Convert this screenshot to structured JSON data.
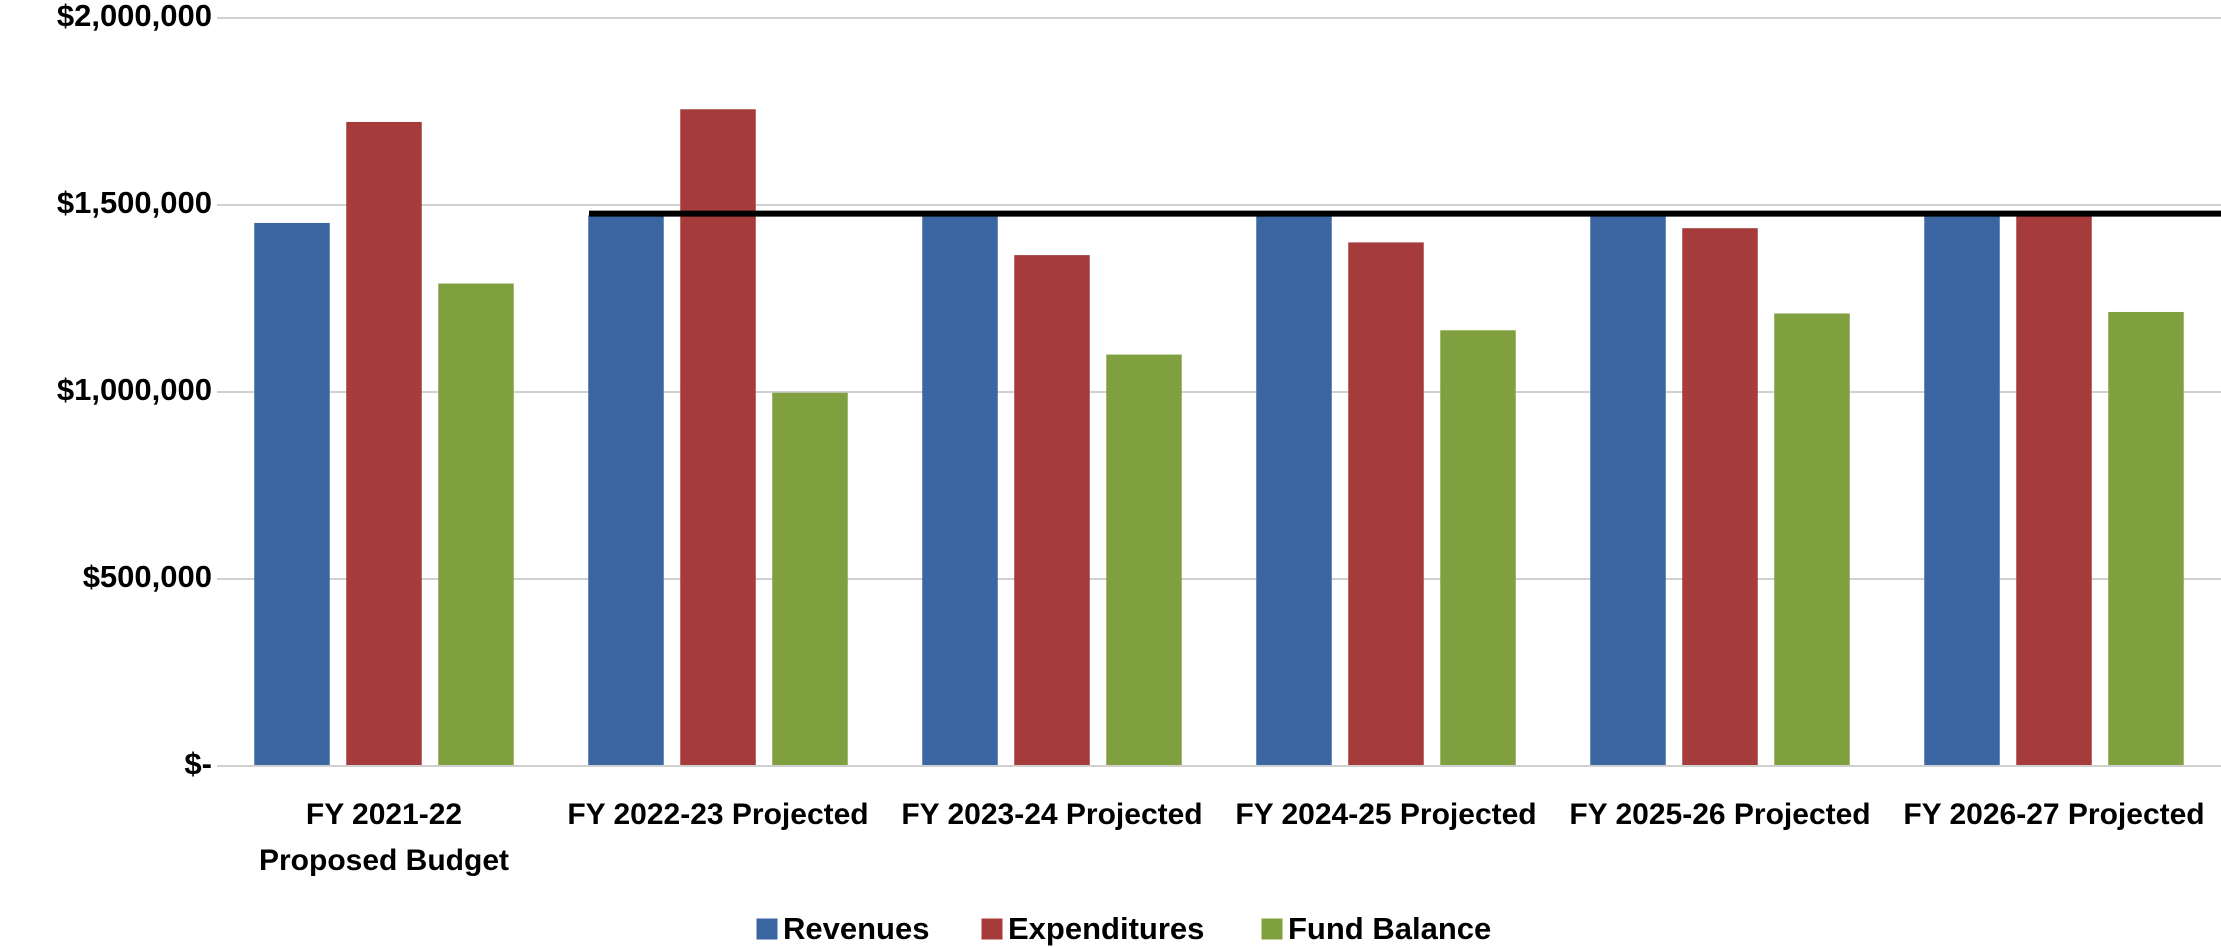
{
  "chart_data": {
    "type": "bar",
    "categories": [
      "FY 2021-22\nProposed Budget",
      "FY 2022-23 Projected",
      "FY 2023-24 Projected",
      "FY 2024-25 Projected",
      "FY 2025-26 Projected",
      "FY 2026-27 Projected"
    ],
    "series": [
      {
        "name": "Revenues",
        "color": "#3b66a1",
        "values": [
          1450000,
          1470000,
          1470000,
          1470000,
          1477000,
          1477000
        ]
      },
      {
        "name": "Expenditures",
        "color": "#a53b3b",
        "values": [
          1720000,
          1754000,
          1364000,
          1398000,
          1436000,
          1470000
        ]
      },
      {
        "name": "Fund Balance",
        "color": "#80a040",
        "values": [
          1288000,
          996000,
          1098000,
          1163000,
          1208000,
          1212000
        ]
      }
    ],
    "reference_line": {
      "color": "#000000",
      "values": [
        null,
        1477000,
        1477000,
        1477000,
        1477000,
        1477000
      ]
    },
    "ylim": [
      0,
      2000000
    ],
    "yticks": [
      {
        "value": 0,
        "label": "$-"
      },
      {
        "value": 500000,
        "label": "$500,000"
      },
      {
        "value": 1000000,
        "label": "$1,000,000"
      },
      {
        "value": 1500000,
        "label": "$1,500,000"
      },
      {
        "value": 2000000,
        "label": "$2,000,000"
      }
    ],
    "grid": true,
    "legend": "bottom"
  }
}
